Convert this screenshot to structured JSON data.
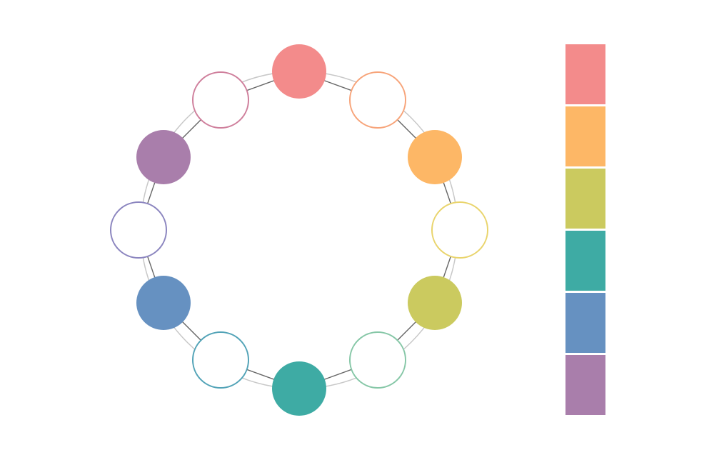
{
  "palette": {
    "main_colors": [
      "#f38b8b",
      "#fdb766",
      "#cbca5f",
      "#3eaba4",
      "#6691c1",
      "#a97eab"
    ],
    "intermediate_colors": [
      "#f7a47a",
      "#e9d46c",
      "#86c7a7",
      "#52a3b7",
      "#8b85bf",
      "#cf7f9c"
    ],
    "ring_color": "#c8c8c8",
    "connector_color": "#666666"
  }
}
